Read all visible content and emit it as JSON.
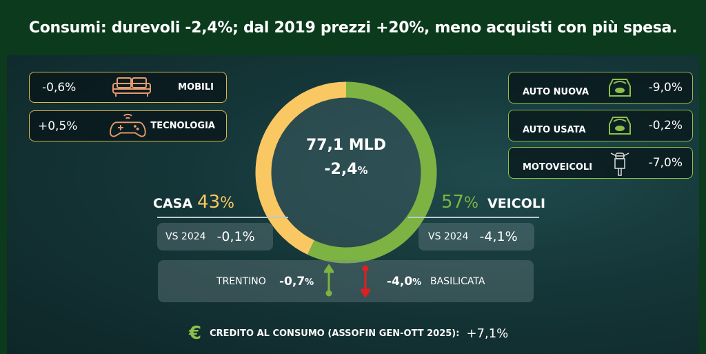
{
  "title": "Consumi: durevoli -2,4%; dal 2019 prezzi +20%, meno acquisti con più spesa.",
  "donut": {
    "total": "77,1 MLD",
    "change": "-2,4",
    "change_unit": "%",
    "segments": [
      {
        "label": "VEICOLI",
        "value": 57,
        "color": "#7cb342"
      },
      {
        "label": "CASA",
        "value": 43,
        "color": "#f9c862"
      }
    ]
  },
  "casa": {
    "label": "CASA",
    "pct": "43",
    "unit": "%",
    "vs_label": "VS 2024",
    "vs_value": "-0,1%",
    "color": "#f9c862"
  },
  "veicoli": {
    "label": "VEICOLI",
    "pct": "57",
    "unit": "%",
    "vs_label": "VS 2024",
    "vs_value": "-4,1%",
    "color": "#7cb342"
  },
  "left_items": [
    {
      "value": "-0,6%",
      "label": "MOBILI",
      "icon": "sofa-icon"
    },
    {
      "value": "+0,5%",
      "label": "TECNOLOGIA",
      "icon": "gamepad-icon"
    }
  ],
  "right_items": [
    {
      "label": "AUTO NUOVA",
      "value": "-9,0%",
      "icon": "car-icon"
    },
    {
      "label": "AUTO USATA",
      "value": "-0,2%",
      "icon": "car-icon"
    },
    {
      "label": "MOTOVEICOLI",
      "value": "-7,0%",
      "icon": "motorcycle-icon"
    }
  ],
  "regions": {
    "best_name": "TRENTINO",
    "best_value": "-0,7",
    "worst_value": "-4,0",
    "worst_name": "BASILICATA",
    "unit": "%"
  },
  "credit": {
    "label": "CREDITO AL CONSUMO (ASSOFIN GEN-OTT 2025):",
    "value": "+7,1%"
  }
}
